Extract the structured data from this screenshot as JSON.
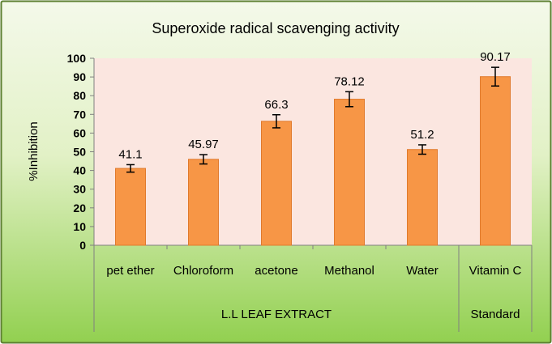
{
  "chart_data": {
    "type": "bar",
    "title": "Superoxide radical scavenging activity",
    "ylabel": "%Inhibition",
    "xlabel": "",
    "ylim": [
      0,
      100
    ],
    "yticks": [
      0,
      10,
      20,
      30,
      40,
      50,
      60,
      70,
      80,
      90,
      100
    ],
    "grid": false,
    "legend": "none",
    "categories": [
      "pet ether",
      "Chloroform",
      "acetone",
      "Methanol",
      "Water",
      "Vitamin C"
    ],
    "values": [
      41.1,
      45.97,
      66.3,
      78.12,
      51.2,
      90.17
    ],
    "data_labels": [
      "41.1",
      "45.97",
      "66.3",
      "78.12",
      "51.2",
      "90.17"
    ],
    "error": [
      2,
      2.5,
      3.5,
      4,
      2.5,
      5
    ],
    "groups": [
      {
        "label": "L.L LEAF EXTRACT",
        "categories": [
          "pet ether",
          "Chloroform",
          "acetone",
          "Methanol",
          "Water"
        ]
      },
      {
        "label": "Standard",
        "categories": [
          "Vitamin C"
        ]
      }
    ],
    "colors": {
      "bar": "#F79646",
      "bar_stroke": "#E07A2C",
      "plot_bg": "#FBE6E0",
      "frame_top": "#F4F9EA",
      "frame_bottom": "#92D050",
      "border": "#5C7F30"
    }
  }
}
